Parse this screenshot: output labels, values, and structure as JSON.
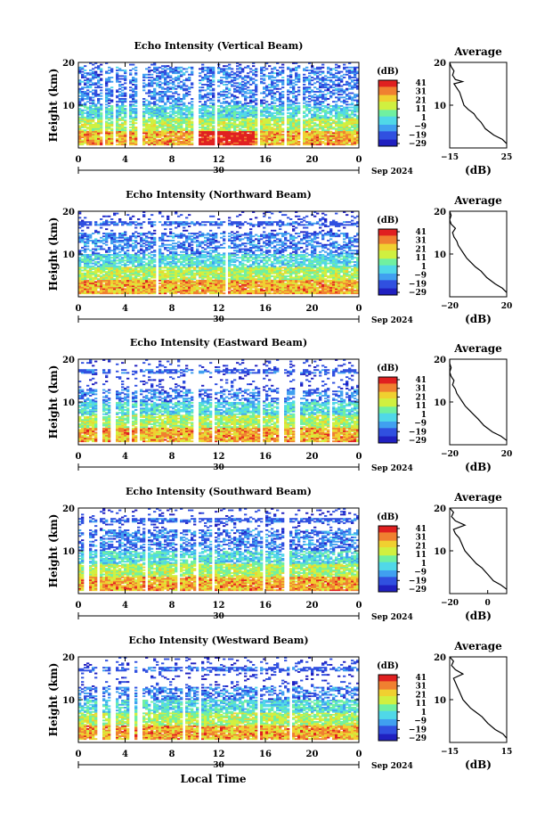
{
  "x_axis_label": "Local Time",
  "date_label": "Sep 2024",
  "colorbar": {
    "unit": "(dB)",
    "ticks": [
      "41",
      "31",
      "21",
      "11",
      "1",
      "−9",
      "−19",
      "−29"
    ],
    "colors": [
      "#2020c0",
      "#3050e0",
      "#40a0f0",
      "#50d8e8",
      "#70f0a0",
      "#d0f040",
      "#f0d030",
      "#f08030",
      "#e02020"
    ]
  },
  "chart_data": [
    {
      "type": "heatmap",
      "title": "Echo Intensity (Vertical Beam)",
      "ylabel": "Height (km)",
      "x_ticks": [
        "0",
        "4",
        "8",
        "12",
        "16",
        "20",
        "0"
      ],
      "day_label": "30",
      "y_ticks": [
        "20",
        "10"
      ],
      "ylim": [
        0,
        20
      ],
      "xlim": [
        0,
        24
      ],
      "profile": {
        "title": "Average",
        "xlabel": "(dB)",
        "x_ticks": [
          "−15",
          "25"
        ],
        "xlim": [
          -15,
          25
        ],
        "y_ticks": [
          "20",
          "10"
        ],
        "points": [
          [
            25,
            1.0
          ],
          [
            22,
            2.0
          ],
          [
            16,
            3.0
          ],
          [
            10,
            4.5
          ],
          [
            7,
            6
          ],
          [
            4,
            7
          ],
          [
            2,
            8
          ],
          [
            -2,
            9
          ],
          [
            -5,
            10
          ],
          [
            -6,
            11
          ],
          [
            -7,
            12
          ],
          [
            -8,
            13
          ],
          [
            -10,
            14
          ],
          [
            -12,
            15
          ],
          [
            -6,
            15.5
          ],
          [
            -11,
            16
          ],
          [
            -13,
            17
          ],
          [
            -12,
            18
          ],
          [
            -14,
            19
          ],
          [
            -15,
            20
          ]
        ]
      }
    },
    {
      "type": "heatmap",
      "title": "Echo Intensity (Northward Beam)",
      "ylabel": "Height (km)",
      "x_ticks": [
        "0",
        "4",
        "8",
        "12",
        "16",
        "20",
        "0"
      ],
      "day_label": "30",
      "y_ticks": [
        "20",
        "10"
      ],
      "ylim": [
        0,
        20
      ],
      "xlim": [
        0,
        24
      ],
      "profile": {
        "title": "Average",
        "xlabel": "(dB)",
        "x_ticks": [
          "−20",
          "20"
        ],
        "xlim": [
          -20,
          20
        ],
        "y_ticks": [
          "20",
          "10"
        ],
        "points": [
          [
            20,
            1.0
          ],
          [
            17,
            2.0
          ],
          [
            12,
            3.0
          ],
          [
            6,
            4.5
          ],
          [
            2,
            6
          ],
          [
            -2,
            7
          ],
          [
            -5,
            8
          ],
          [
            -8,
            9
          ],
          [
            -10,
            10
          ],
          [
            -12,
            11
          ],
          [
            -14,
            12
          ],
          [
            -15,
            13
          ],
          [
            -17,
            14
          ],
          [
            -18,
            15
          ],
          [
            -16,
            16
          ],
          [
            -19,
            17
          ],
          [
            -20,
            18
          ],
          [
            -19,
            19
          ],
          [
            -20,
            20
          ]
        ]
      }
    },
    {
      "type": "heatmap",
      "title": "Echo Intensity (Eastward Beam)",
      "ylabel": "Height (km)",
      "x_ticks": [
        "0",
        "4",
        "8",
        "12",
        "16",
        "20",
        "0"
      ],
      "day_label": "30",
      "y_ticks": [
        "20",
        "10"
      ],
      "ylim": [
        0,
        20
      ],
      "xlim": [
        0,
        24
      ],
      "profile": {
        "title": "Average",
        "xlabel": "(dB)",
        "x_ticks": [
          "−20",
          "20"
        ],
        "xlim": [
          -20,
          20
        ],
        "y_ticks": [
          "20",
          "10"
        ],
        "points": [
          [
            20,
            1.0
          ],
          [
            16,
            2.0
          ],
          [
            10,
            3.0
          ],
          [
            4,
            4.5
          ],
          [
            0,
            6
          ],
          [
            -3,
            7
          ],
          [
            -6,
            8
          ],
          [
            -9,
            9
          ],
          [
            -11,
            10
          ],
          [
            -13,
            11
          ],
          [
            -15,
            12
          ],
          [
            -16,
            13
          ],
          [
            -18,
            14
          ],
          [
            -17,
            15
          ],
          [
            -19,
            16
          ],
          [
            -20,
            17
          ],
          [
            -19,
            18
          ],
          [
            -20,
            19
          ],
          [
            -20,
            20
          ]
        ]
      }
    },
    {
      "type": "heatmap",
      "title": "Echo Intensity (Southward Beam)",
      "ylabel": "Height (km)",
      "x_ticks": [
        "0",
        "4",
        "8",
        "12",
        "16",
        "20",
        "0"
      ],
      "day_label": "30",
      "y_ticks": [
        "20",
        "10"
      ],
      "ylim": [
        0,
        20
      ],
      "xlim": [
        0,
        24
      ],
      "profile": {
        "title": "Average",
        "xlabel": "(dB)",
        "x_ticks": [
          "−20",
          "0"
        ],
        "xlim": [
          -20,
          10
        ],
        "y_ticks": [
          "20",
          "10"
        ],
        "points": [
          [
            10,
            1.0
          ],
          [
            7,
            2.0
          ],
          [
            3,
            3.0
          ],
          [
            0,
            4.5
          ],
          [
            -3,
            6
          ],
          [
            -6,
            7
          ],
          [
            -8,
            8
          ],
          [
            -10,
            9
          ],
          [
            -12,
            10
          ],
          [
            -13,
            11
          ],
          [
            -14,
            12
          ],
          [
            -15,
            13
          ],
          [
            -17,
            14
          ],
          [
            -18,
            15
          ],
          [
            -12,
            16
          ],
          [
            -17,
            17
          ],
          [
            -19,
            18
          ],
          [
            -18,
            19
          ],
          [
            -20,
            20
          ]
        ]
      }
    },
    {
      "type": "heatmap",
      "title": "Echo Intensity (Westward Beam)",
      "ylabel": "Height (km)",
      "x_ticks": [
        "0",
        "4",
        "8",
        "12",
        "16",
        "20",
        "0"
      ],
      "day_label": "30",
      "y_ticks": [
        "20",
        "10"
      ],
      "ylim": [
        0,
        20
      ],
      "xlim": [
        0,
        24
      ],
      "profile": {
        "title": "Average",
        "xlabel": "(dB)",
        "x_ticks": [
          "−15",
          "15"
        ],
        "xlim": [
          -15,
          15
        ],
        "y_ticks": [
          "20",
          "10"
        ],
        "points": [
          [
            15,
            1.0
          ],
          [
            13,
            2.0
          ],
          [
            9,
            3.0
          ],
          [
            5,
            4.5
          ],
          [
            2,
            6
          ],
          [
            -1,
            7
          ],
          [
            -4,
            8
          ],
          [
            -6,
            9
          ],
          [
            -8,
            10
          ],
          [
            -9,
            11
          ],
          [
            -10,
            12
          ],
          [
            -11,
            13
          ],
          [
            -12,
            14
          ],
          [
            -13,
            15
          ],
          [
            -8,
            16
          ],
          [
            -12,
            17
          ],
          [
            -14,
            18
          ],
          [
            -13,
            19
          ],
          [
            -15,
            20
          ]
        ]
      }
    }
  ]
}
